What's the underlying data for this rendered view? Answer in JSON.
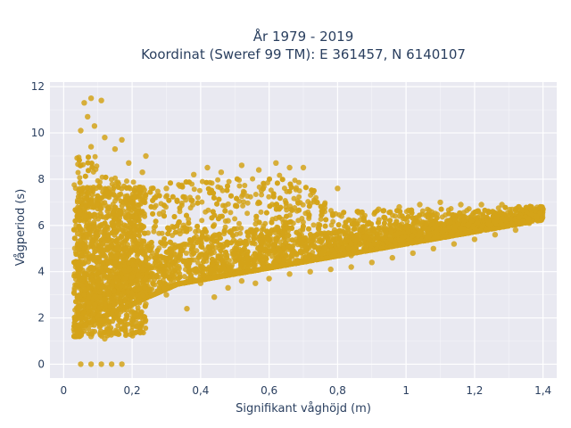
{
  "chart_data": {
    "type": "scatter",
    "title": "År 1979 - 2019",
    "subtitle": "Koordinat (Sweref 99 TM): E 361457, N 6140107",
    "xlabel": "Signifikant våghöjd (m)",
    "ylabel": "Vågperiod (s)",
    "xlim": [
      -0.04,
      1.44
    ],
    "ylim": [
      -0.6,
      12.2
    ],
    "x_ticks": [
      0,
      0.2,
      0.4,
      0.6,
      0.8,
      1,
      1.2,
      1.4
    ],
    "x_tick_labels": [
      "0",
      "0,2",
      "0,4",
      "0,6",
      "0,8",
      "1",
      "1,2",
      "1,4"
    ],
    "y_ticks": [
      0,
      2,
      4,
      6,
      8,
      10,
      12
    ],
    "y_tick_labels": [
      "0",
      "2",
      "4",
      "6",
      "8",
      "10",
      "12"
    ],
    "grid": true,
    "legend": "none",
    "colors": {
      "marker": "#D4A319",
      "plot_background": "#E9E9F1",
      "grid": "#ffffff",
      "text": "#2a3f5f"
    },
    "points": [
      {
        "x": 0.05,
        "y": 0
      },
      {
        "x": 0.08,
        "y": 0
      },
      {
        "x": 0.11,
        "y": 0
      },
      {
        "x": 0.14,
        "y": 0
      },
      {
        "x": 0.17,
        "y": 0
      },
      {
        "x": 0.03,
        "y": 1.5
      },
      {
        "x": 0.05,
        "y": 1.3
      },
      {
        "x": 0.08,
        "y": 1.2
      },
      {
        "x": 0.12,
        "y": 1.1
      },
      {
        "x": 0.16,
        "y": 1.3
      },
      {
        "x": 0.18,
        "y": 1.5
      },
      {
        "x": 0.06,
        "y": 2.2
      },
      {
        "x": 0.07,
        "y": 3.5
      },
      {
        "x": 0.05,
        "y": 4.8
      },
      {
        "x": 0.06,
        "y": 6.2
      },
      {
        "x": 0.07,
        "y": 7.4
      },
      {
        "x": 0.05,
        "y": 8.6
      },
      {
        "x": 0.08,
        "y": 9.4
      },
      {
        "x": 0.05,
        "y": 10.1
      },
      {
        "x": 0.07,
        "y": 10.7
      },
      {
        "x": 0.06,
        "y": 11.3
      },
      {
        "x": 0.08,
        "y": 11.5
      },
      {
        "x": 0.11,
        "y": 11.4
      },
      {
        "x": 0.09,
        "y": 10.3
      },
      {
        "x": 0.12,
        "y": 9.8
      },
      {
        "x": 0.15,
        "y": 9.3
      },
      {
        "x": 0.19,
        "y": 8.7
      },
      {
        "x": 0.23,
        "y": 8.3
      },
      {
        "x": 0.24,
        "y": 9.0
      },
      {
        "x": 0.17,
        "y": 9.7
      },
      {
        "x": 0.1,
        "y": 7.1
      },
      {
        "x": 0.14,
        "y": 6.4
      },
      {
        "x": 0.18,
        "y": 5.7
      },
      {
        "x": 0.2,
        "y": 4.5
      },
      {
        "x": 0.22,
        "y": 3.5
      },
      {
        "x": 0.24,
        "y": 2.6
      },
      {
        "x": 0.26,
        "y": 3.9
      },
      {
        "x": 0.3,
        "y": 3.0
      },
      {
        "x": 0.33,
        "y": 4.6
      },
      {
        "x": 0.36,
        "y": 2.4
      },
      {
        "x": 0.4,
        "y": 3.5
      },
      {
        "x": 0.44,
        "y": 2.9
      },
      {
        "x": 0.48,
        "y": 3.3
      },
      {
        "x": 0.52,
        "y": 3.6
      },
      {
        "x": 0.56,
        "y": 3.5
      },
      {
        "x": 0.6,
        "y": 3.7
      },
      {
        "x": 0.66,
        "y": 3.9
      },
      {
        "x": 0.72,
        "y": 4.0
      },
      {
        "x": 0.78,
        "y": 4.1
      },
      {
        "x": 0.84,
        "y": 4.2
      },
      {
        "x": 0.9,
        "y": 4.4
      },
      {
        "x": 0.96,
        "y": 4.6
      },
      {
        "x": 1.02,
        "y": 4.8
      },
      {
        "x": 1.08,
        "y": 5.0
      },
      {
        "x": 1.14,
        "y": 5.2
      },
      {
        "x": 1.2,
        "y": 5.4
      },
      {
        "x": 1.26,
        "y": 5.6
      },
      {
        "x": 1.32,
        "y": 5.8
      },
      {
        "x": 1.36,
        "y": 6.1
      },
      {
        "x": 1.38,
        "y": 6.4
      },
      {
        "x": 1.4,
        "y": 6.7
      },
      {
        "x": 1.33,
        "y": 6.8
      },
      {
        "x": 1.28,
        "y": 6.9
      },
      {
        "x": 1.22,
        "y": 6.9
      },
      {
        "x": 1.16,
        "y": 6.9
      },
      {
        "x": 1.1,
        "y": 7.0
      },
      {
        "x": 1.04,
        "y": 6.9
      },
      {
        "x": 0.98,
        "y": 6.8
      },
      {
        "x": 0.92,
        "y": 6.7
      },
      {
        "x": 0.86,
        "y": 6.6
      },
      {
        "x": 0.8,
        "y": 7.6
      },
      {
        "x": 0.74,
        "y": 7.0
      },
      {
        "x": 0.7,
        "y": 8.5
      },
      {
        "x": 0.66,
        "y": 8.5
      },
      {
        "x": 0.62,
        "y": 8.7
      },
      {
        "x": 0.57,
        "y": 8.4
      },
      {
        "x": 0.52,
        "y": 8.6
      },
      {
        "x": 0.46,
        "y": 8.3
      },
      {
        "x": 0.42,
        "y": 8.5
      },
      {
        "x": 0.38,
        "y": 8.2
      },
      {
        "x": 0.34,
        "y": 7.7
      },
      {
        "x": 0.3,
        "y": 7.6
      },
      {
        "x": 0.28,
        "y": 6.5
      },
      {
        "x": 0.35,
        "y": 6.0
      },
      {
        "x": 0.42,
        "y": 5.5
      },
      {
        "x": 0.48,
        "y": 6.2
      },
      {
        "x": 0.55,
        "y": 5.8
      },
      {
        "x": 0.62,
        "y": 6.3
      },
      {
        "x": 0.68,
        "y": 5.4
      },
      {
        "x": 0.75,
        "y": 5.6
      },
      {
        "x": 0.82,
        "y": 5.3
      },
      {
        "x": 0.88,
        "y": 5.5
      },
      {
        "x": 0.94,
        "y": 5.7
      },
      {
        "x": 1.0,
        "y": 5.9
      },
      {
        "x": 1.06,
        "y": 6.1
      },
      {
        "x": 1.12,
        "y": 6.2
      },
      {
        "x": 1.18,
        "y": 6.0
      },
      {
        "x": 1.24,
        "y": 6.2
      },
      {
        "x": 1.3,
        "y": 6.3
      },
      {
        "x": 0.25,
        "y": 5.2
      },
      {
        "x": 0.32,
        "y": 4.0
      },
      {
        "x": 0.38,
        "y": 4.8
      },
      {
        "x": 0.45,
        "y": 4.2
      },
      {
        "x": 0.5,
        "y": 5.0
      },
      {
        "x": 0.58,
        "y": 4.5
      },
      {
        "x": 0.64,
        "y": 4.8
      },
      {
        "x": 0.7,
        "y": 4.6
      },
      {
        "x": 0.76,
        "y": 4.9
      },
      {
        "x": 0.84,
        "y": 4.7
      },
      {
        "x": 0.12,
        "y": 2.8
      },
      {
        "x": 0.15,
        "y": 2.0
      },
      {
        "x": 0.1,
        "y": 4.0
      },
      {
        "x": 0.13,
        "y": 5.0
      },
      {
        "x": 0.16,
        "y": 7.8
      },
      {
        "x": 0.2,
        "y": 7.0
      }
    ]
  }
}
